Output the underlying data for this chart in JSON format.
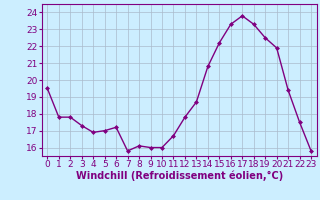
{
  "x": [
    0,
    1,
    2,
    3,
    4,
    5,
    6,
    7,
    8,
    9,
    10,
    11,
    12,
    13,
    14,
    15,
    16,
    17,
    18,
    19,
    20,
    21,
    22,
    23
  ],
  "y": [
    19.5,
    17.8,
    17.8,
    17.3,
    16.9,
    17.0,
    17.2,
    15.8,
    16.1,
    16.0,
    16.0,
    16.7,
    17.8,
    18.7,
    20.8,
    22.2,
    23.3,
    23.8,
    23.3,
    22.5,
    21.9,
    19.4,
    17.5,
    15.8
  ],
  "line_color": "#800080",
  "marker": "D",
  "marker_size": 2.0,
  "line_width": 1.0,
  "bg_color": "#cceeff",
  "grid_color": "#aabbcc",
  "xlabel": "Windchill (Refroidissement éolien,°C)",
  "xlabel_fontsize": 7,
  "ylabel_ticks": [
    16,
    17,
    18,
    19,
    20,
    21,
    22,
    23,
    24
  ],
  "ylim": [
    15.5,
    24.5
  ],
  "xlim": [
    -0.5,
    23.5
  ],
  "tick_fontsize": 6.5,
  "xtick_labels": [
    "0",
    "1",
    "2",
    "3",
    "4",
    "5",
    "6",
    "7",
    "8",
    "9",
    "10",
    "11",
    "12",
    "13",
    "14",
    "15",
    "16",
    "17",
    "18",
    "19",
    "20",
    "21",
    "22",
    "23"
  ]
}
